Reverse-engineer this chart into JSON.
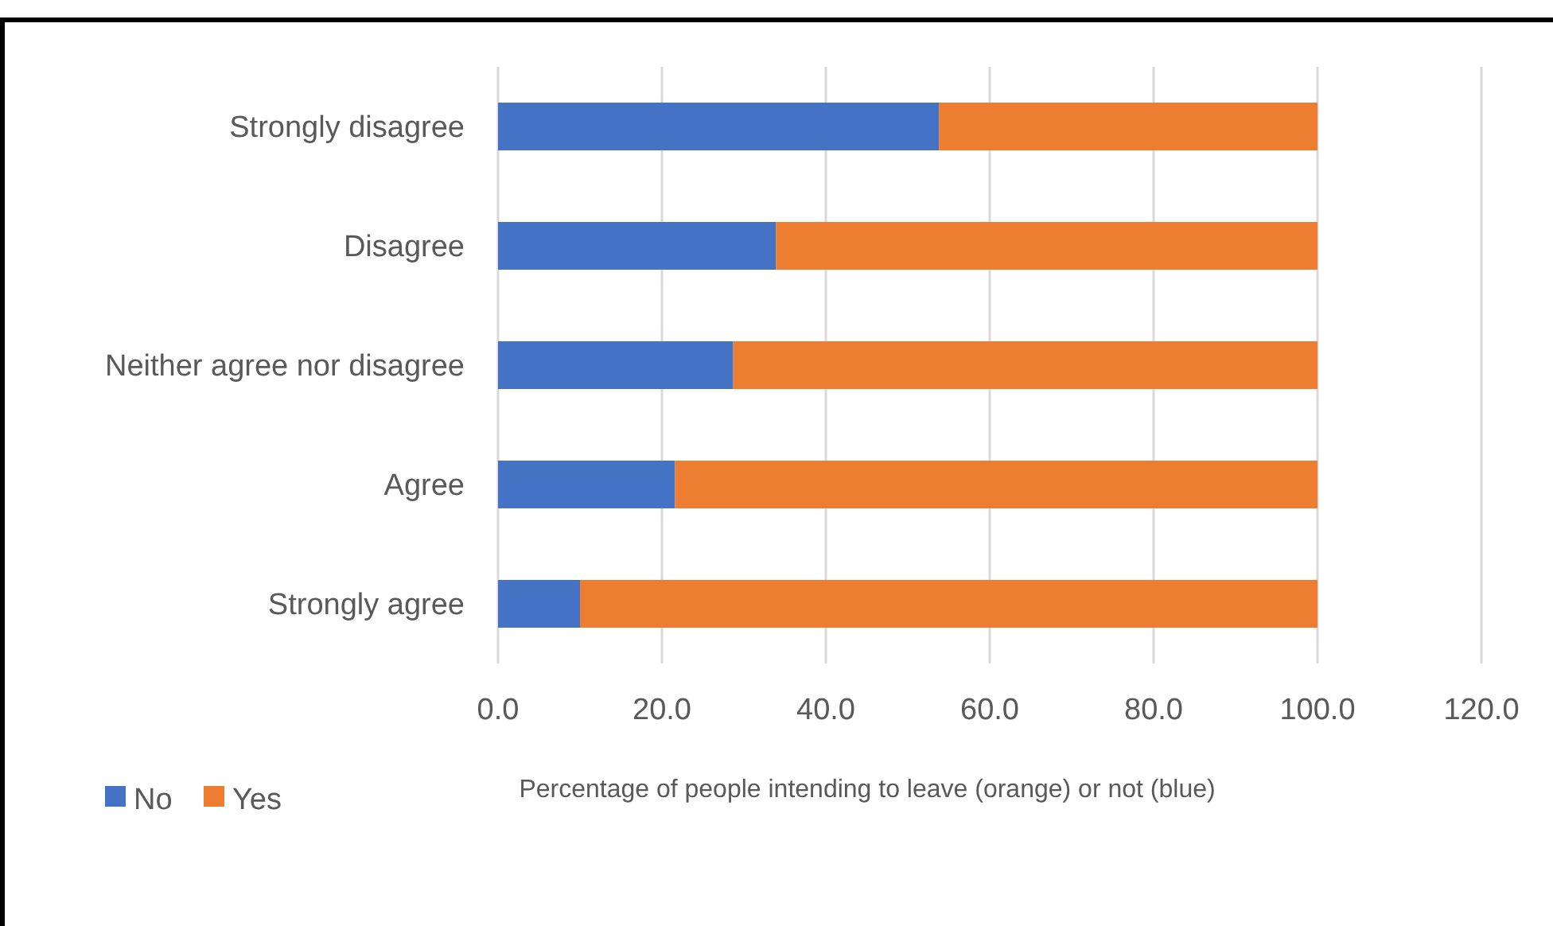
{
  "chart_data": {
    "type": "bar",
    "orientation": "horizontal",
    "stacked": true,
    "xlabel": "Percentage of people intending to leave (orange) or not (blue)",
    "categories": [
      "Strongly disagree",
      "Disagree",
      "Neither agree nor disagree",
      "Agree",
      "Strongly agree"
    ],
    "series": [
      {
        "name": "No",
        "color": "#4472c4",
        "values": [
          53.8,
          33.9,
          28.7,
          21.6,
          10.0
        ]
      },
      {
        "name": "Yes",
        "color": "#ed7d31",
        "values": [
          46.2,
          66.1,
          71.3,
          78.4,
          90.0
        ]
      }
    ],
    "xlim": [
      0,
      120
    ],
    "xticks": [
      {
        "value": 0,
        "label": "0.0"
      },
      {
        "value": 20,
        "label": "20.0"
      },
      {
        "value": 40,
        "label": "40.0"
      },
      {
        "value": 60,
        "label": "60.0"
      },
      {
        "value": 80,
        "label": "80.0"
      },
      {
        "value": 100,
        "label": "100.0"
      },
      {
        "value": 120,
        "label": "120.0"
      }
    ],
    "grid": "x",
    "legend": "bottom left"
  }
}
